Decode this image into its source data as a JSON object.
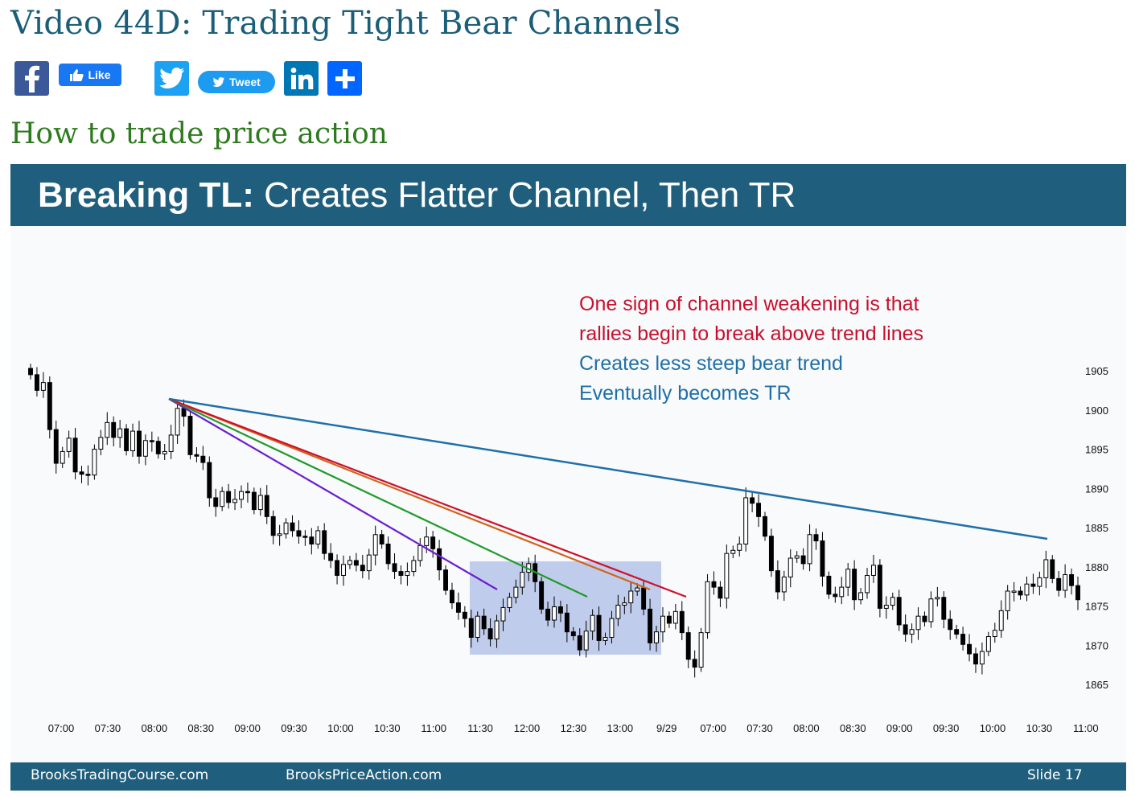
{
  "page": {
    "title": "Video 44D: Trading Tight Bear Channels",
    "subtitle": "How to trade price action"
  },
  "share": {
    "facebook_icon": "facebook-icon",
    "like_label": "Like",
    "twitter_icon": "twitter-icon",
    "tweet_label": "Tweet",
    "linkedin_icon": "linkedin-icon",
    "share_icon": "plus-icon",
    "colors": {
      "facebook": "#3b5998",
      "like": "#1877f2",
      "twitter": "#1da1f2",
      "linkedin": "#0077b5",
      "share": "#0166ff"
    }
  },
  "slide": {
    "header_bold": "Breaking TL:",
    "header_rest": " Creates Flatter Channel, Then TR",
    "annotation_red": [
      "One sign of channel weakening is that",
      "rallies begin to break above trend lines"
    ],
    "annotation_blue": [
      "Creates less steep bear trend",
      "Eventually becomes TR"
    ],
    "footer_left": "BrooksTradingCourse.com",
    "footer_mid": "BrooksPriceAction.com",
    "footer_right": "Slide  17",
    "colors": {
      "header_bg": "#1f5f7d",
      "red_text": "#c8102e",
      "blue_text": "#1f6fa8"
    }
  },
  "chart_data": {
    "type": "candlestick",
    "x_ticks": [
      "07:00",
      "07:30",
      "08:00",
      "08:30",
      "09:00",
      "09:30",
      "10:00",
      "10:30",
      "11:00",
      "11:30",
      "12:00",
      "12:30",
      "13:00",
      "9/29",
      "07:00",
      "07:30",
      "08:00",
      "08:30",
      "09:00",
      "09:30",
      "10:00",
      "10:30",
      "11:00"
    ],
    "y_ticks": [
      1905,
      1900,
      1895,
      1890,
      1885,
      1880,
      1875,
      1870,
      1865
    ],
    "ylim": [
      1862,
      1910
    ],
    "grid": false,
    "closes": [
      1904.5,
      1902.5,
      1903.5,
      1897.5,
      1893.2,
      1894.7,
      1896.4,
      1892.1,
      1891.8,
      1891.7,
      1895.0,
      1896.5,
      1898.4,
      1896.5,
      1897.6,
      1894.8,
      1897.3,
      1894.1,
      1896.1,
      1896.0,
      1894.4,
      1894.7,
      1896.8,
      1900.2,
      1899.2,
      1894.3,
      1894.1,
      1893.3,
      1888.8,
      1887.7,
      1889.6,
      1888.2,
      1888.6,
      1889.6,
      1889.5,
      1887.3,
      1889.1,
      1886.4,
      1884.0,
      1884.2,
      1885.6,
      1884.6,
      1883.9,
      1883.8,
      1882.9,
      1884.6,
      1881.7,
      1880.8,
      1878.9,
      1880.3,
      1880.8,
      1880.2,
      1879.5,
      1881.5,
      1884.1,
      1882.9,
      1880.4,
      1879.4,
      1878.9,
      1879.4,
      1880.8,
      1882.7,
      1883.8,
      1882.3,
      1879.6,
      1877.0,
      1875.4,
      1874.2,
      1873.4,
      1871.0,
      1873.7,
      1872.1,
      1870.8,
      1873.1,
      1874.8,
      1876.1,
      1877.4,
      1879.3,
      1880.4,
      1878.1,
      1874.6,
      1873.2,
      1874.9,
      1874.1,
      1871.7,
      1871.2,
      1869.4,
      1871.8,
      1873.8,
      1870.6,
      1871.0,
      1873.4,
      1875.1,
      1875.4,
      1876.9,
      1877.3,
      1874.6,
      1870.3,
      1871.7,
      1873.7,
      1872.8,
      1874.3,
      1871.6,
      1868.2,
      1867.2,
      1871.6,
      1878.1,
      1877.4,
      1876.0,
      1881.7,
      1882.1,
      1882.9,
      1888.8,
      1888.1,
      1886.4,
      1883.9,
      1879.5,
      1876.8,
      1878.7,
      1881.1,
      1881.4,
      1880.4,
      1884.1,
      1883.3,
      1878.8,
      1876.5,
      1876.2,
      1877.4,
      1879.7,
      1875.8,
      1876.7,
      1878.9,
      1880.2,
      1874.7,
      1875.1,
      1876.1,
      1872.6,
      1871.4,
      1872.0,
      1873.7,
      1873.0,
      1875.9,
      1876.1,
      1873.3,
      1872.0,
      1871.4,
      1870.1,
      1868.9,
      1867.6,
      1869.2,
      1871.1,
      1871.9,
      1874.4,
      1876.9,
      1876.9,
      1876.4,
      1877.8,
      1877.5,
      1878.6,
      1880.9,
      1878.5,
      1877.0,
      1879.0,
      1877.6,
      1875.8
    ]
  }
}
